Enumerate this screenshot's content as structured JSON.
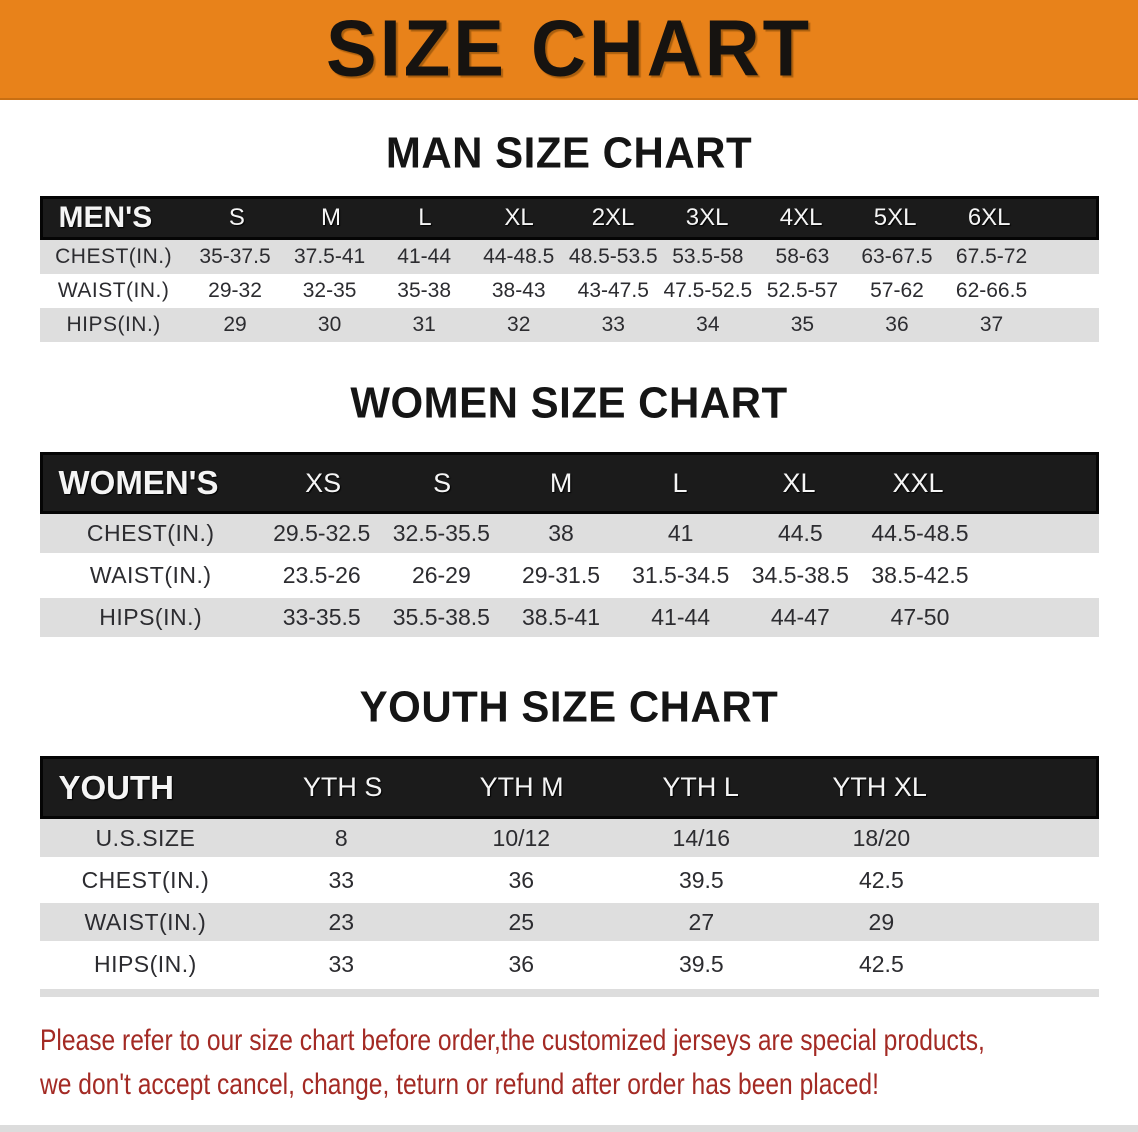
{
  "banner": {
    "title": "SIZE CHART"
  },
  "men": {
    "heading": "MAN SIZE CHART",
    "header": {
      "label": "MEN'S",
      "sizes": [
        "S",
        "M",
        "L",
        "XL",
        "2XL",
        "3XL",
        "4XL",
        "5XL",
        "6XL"
      ]
    },
    "rows": [
      {
        "label": "CHEST(IN.)",
        "values": [
          "35-37.5",
          "37.5-41",
          "41-44",
          "44-48.5",
          "48.5-53.5",
          "53.5-58",
          "58-63",
          "63-67.5",
          "67.5-72"
        ]
      },
      {
        "label": "WAIST(IN.)",
        "values": [
          "29-32",
          "32-35",
          "35-38",
          "38-43",
          "43-47.5",
          "47.5-52.5",
          "52.5-57",
          "57-62",
          "62-66.5"
        ]
      },
      {
        "label": "HIPS(IN.)",
        "values": [
          "29",
          "30",
          "31",
          "32",
          "33",
          "34",
          "35",
          "36",
          "37"
        ]
      }
    ]
  },
  "women": {
    "heading": "WOMEN SIZE CHART",
    "header": {
      "label": "WOMEN'S",
      "sizes": [
        "XS",
        "S",
        "M",
        "L",
        "XL",
        "XXL"
      ]
    },
    "rows": [
      {
        "label": "CHEST(IN.)",
        "values": [
          "29.5-32.5",
          "32.5-35.5",
          "38",
          "41",
          "44.5",
          "44.5-48.5"
        ]
      },
      {
        "label": "WAIST(IN.)",
        "values": [
          "23.5-26",
          "26-29",
          "29-31.5",
          "31.5-34.5",
          "34.5-38.5",
          "38.5-42.5"
        ]
      },
      {
        "label": "HIPS(IN.)",
        "values": [
          "33-35.5",
          "35.5-38.5",
          "38.5-41",
          "41-44",
          "44-47",
          "47-50"
        ]
      }
    ]
  },
  "youth": {
    "heading": "YOUTH SIZE CHART",
    "header": {
      "label": "YOUTH",
      "sizes": [
        "YTH S",
        "YTH M",
        "YTH L",
        "YTH XL"
      ]
    },
    "rows": [
      {
        "label": "U.S.SIZE",
        "values": [
          "8",
          "10/12",
          "14/16",
          "18/20"
        ]
      },
      {
        "label": "CHEST(IN.)",
        "values": [
          "33",
          "36",
          "39.5",
          "42.5"
        ]
      },
      {
        "label": "WAIST(IN.)",
        "values": [
          "23",
          "25",
          "27",
          "29"
        ]
      },
      {
        "label": "HIPS(IN.)",
        "values": [
          "33",
          "36",
          "39.5",
          "42.5"
        ]
      }
    ]
  },
  "disclaimer": {
    "line1": "Please refer to our size chart before order,the customized jerseys are special products,",
    "line2": "we don't accept cancel, change, teturn or refund after order has been placed!"
  },
  "colors": {
    "banner_orange": "#E8821A",
    "header_black": "#1b1b1b",
    "row_gray": "#DEDEDE",
    "disclaimer_red": "#A32A24"
  }
}
